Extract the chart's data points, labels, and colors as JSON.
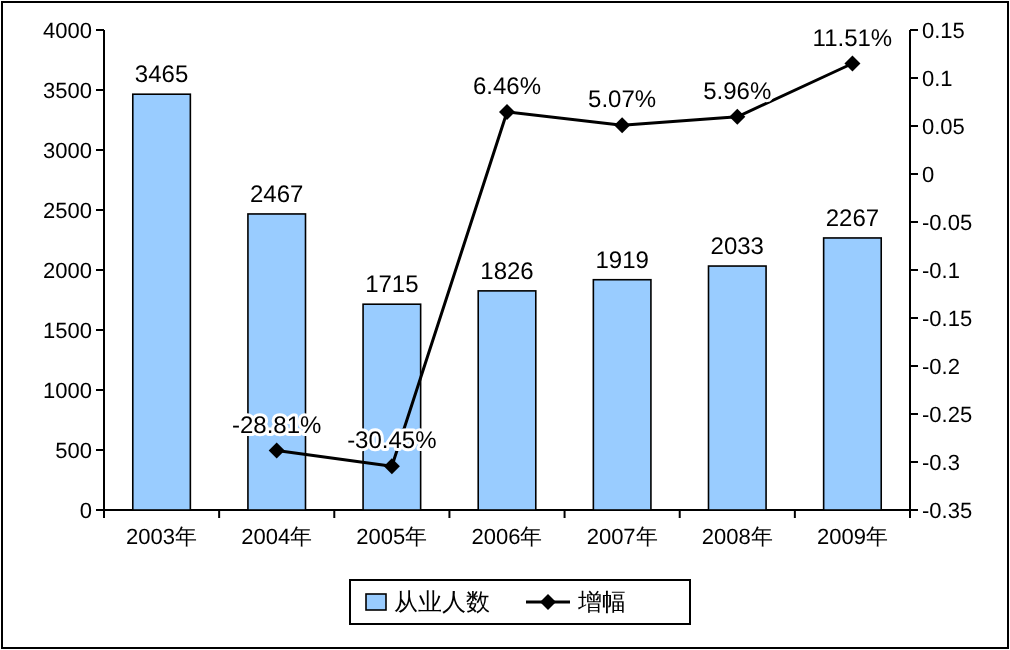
{
  "chart_data": {
    "type": "bar",
    "categories": [
      "2003年",
      "2004年",
      "2005年",
      "2006年",
      "2007年",
      "2008年",
      "2009年"
    ],
    "series": [
      {
        "name": "从业人数",
        "color": "#99ccff",
        "values": [
          3465,
          2467,
          1715,
          1826,
          1919,
          2033,
          2267
        ],
        "value_labels": [
          "3465",
          "2467",
          "1715",
          "1826",
          "1919",
          "2033",
          "2267"
        ]
      },
      {
        "name": "增幅",
        "type": "line",
        "axis": "y2",
        "color": "#000000",
        "marker": "diamond",
        "values": [
          null,
          -0.2881,
          -0.3045,
          0.0646,
          0.0507,
          0.0596,
          0.1151
        ],
        "value_labels": [
          null,
          "-28.81%",
          "-30.45%",
          "6.46%",
          "5.07%",
          "5.96%",
          "11.51%"
        ]
      }
    ],
    "ylim": [
      0,
      4000
    ],
    "yticks": [
      0,
      500,
      1000,
      1500,
      2000,
      2500,
      3000,
      3500,
      4000
    ],
    "y2lim": [
      -0.35,
      0.15
    ],
    "y2ticks": [
      -0.35,
      -0.3,
      -0.25,
      -0.2,
      -0.15,
      -0.1,
      -0.05,
      0,
      0.05,
      0.1,
      0.15
    ],
    "grid": false,
    "legend": "bottom"
  }
}
